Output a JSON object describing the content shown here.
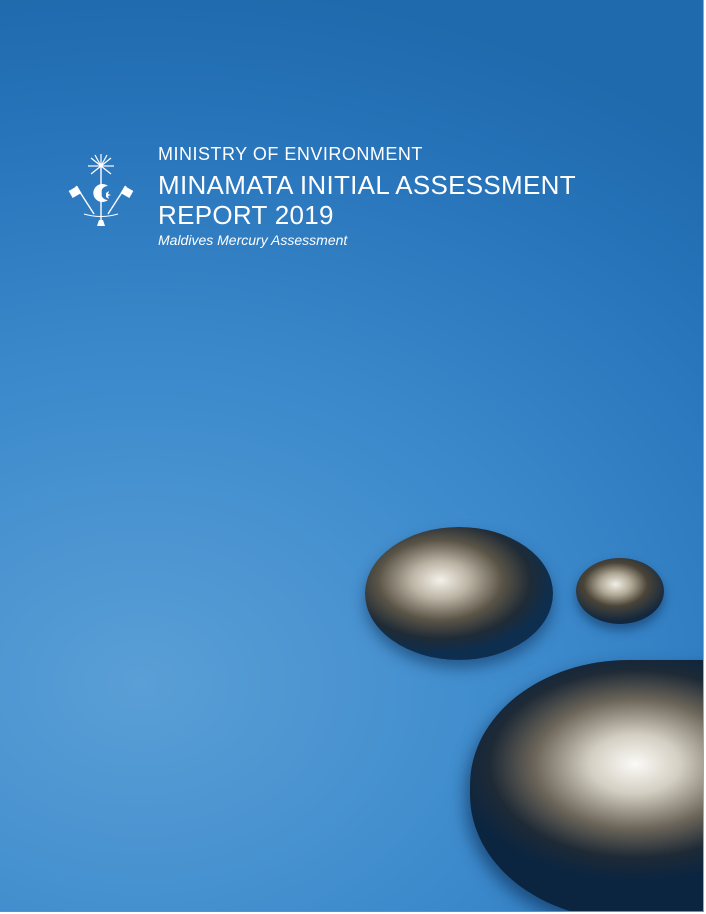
{
  "header": {
    "ministry": "MINISTRY OF ENVIRONMENT",
    "title_line1": "MINAMATA INITIAL ASSESSMENT",
    "title_line2": "REPORT 2019",
    "subtitle": "Maldives Mercury Assessment"
  },
  "colors": {
    "background": "#3f8ccd",
    "text": "#ffffff"
  }
}
